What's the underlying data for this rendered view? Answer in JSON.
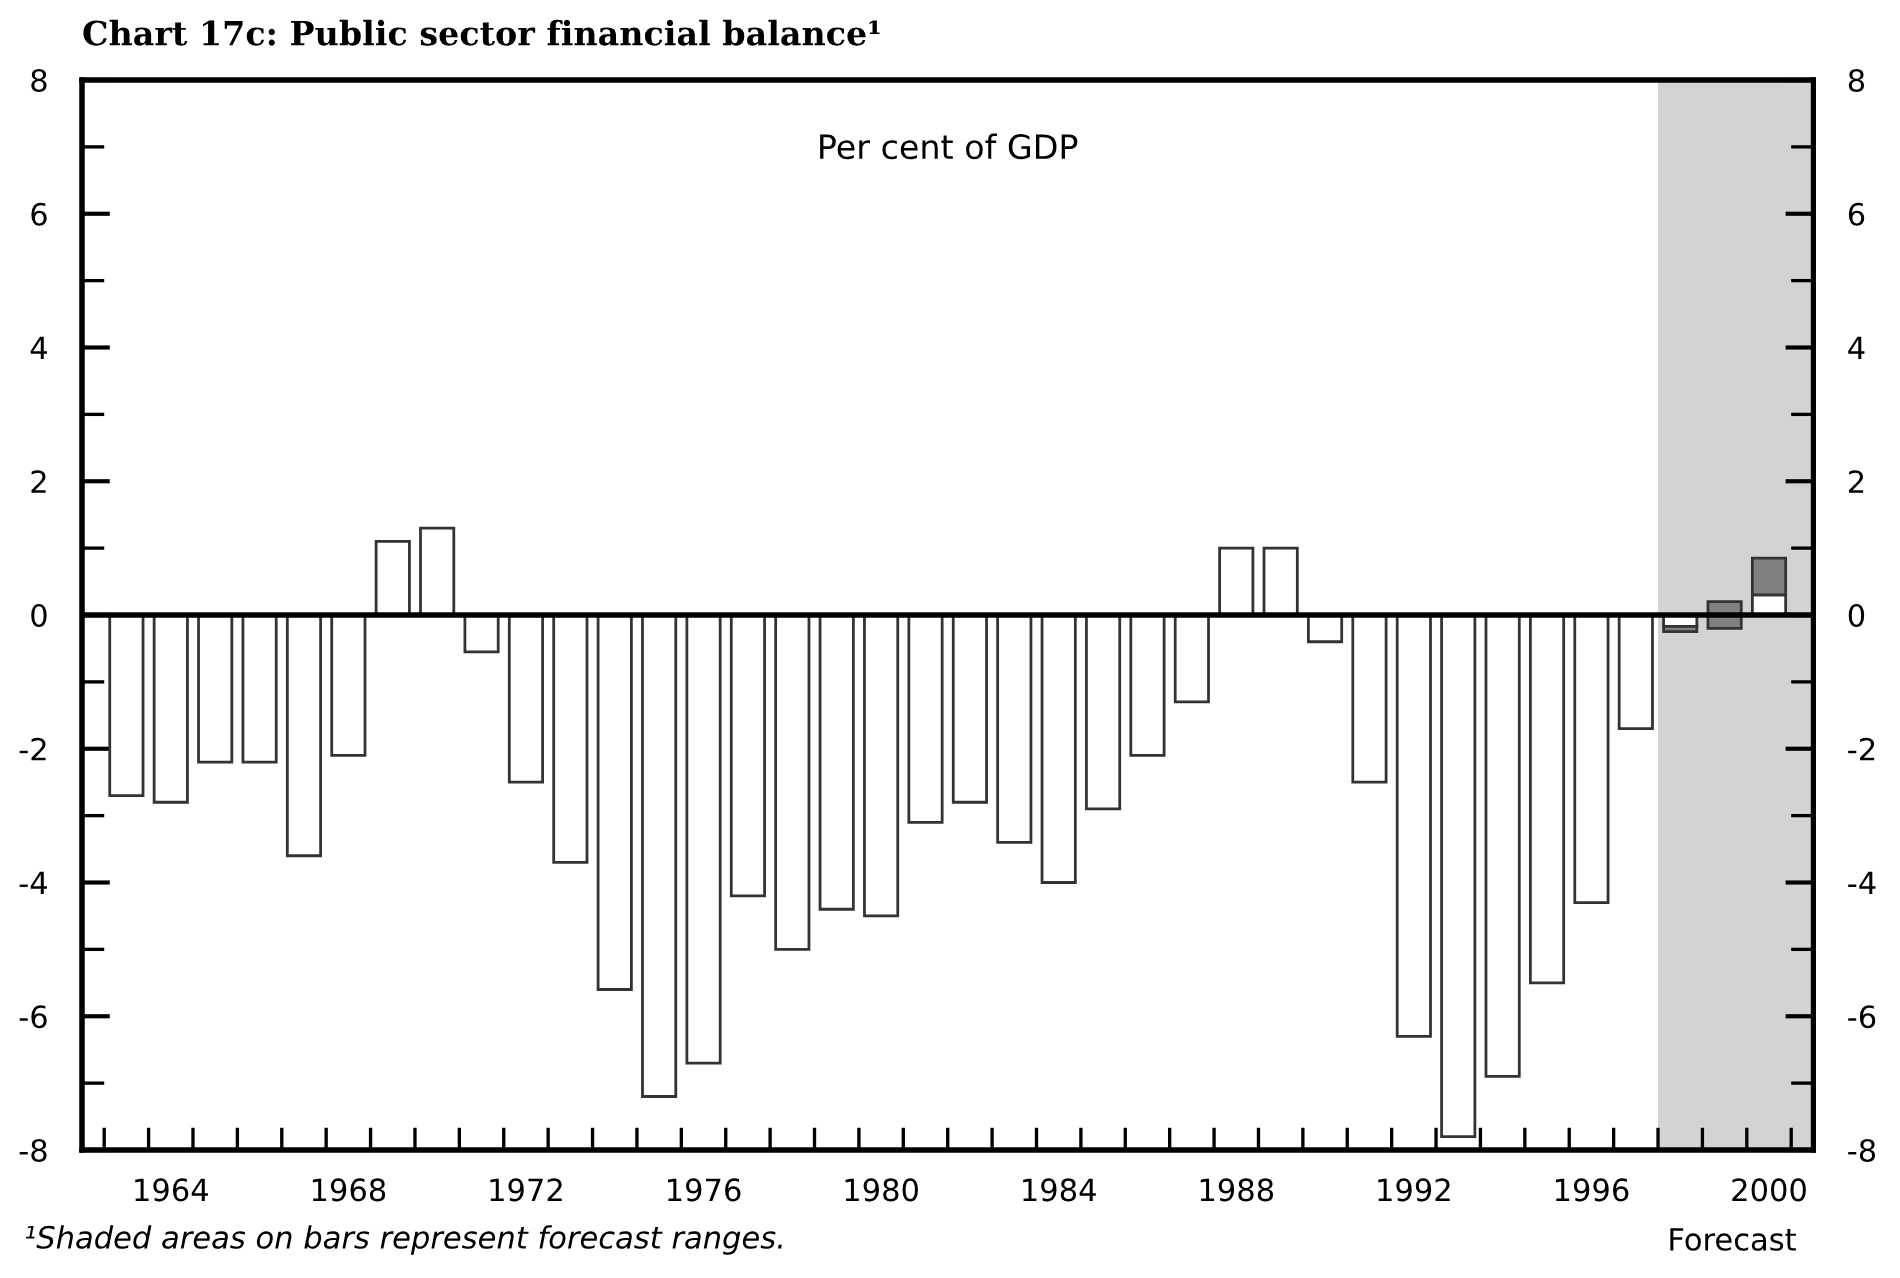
{
  "chart_data": {
    "type": "bar",
    "title": "Chart 17c: Public sector financial balance¹",
    "x": [
      1963,
      1964,
      1965,
      1966,
      1967,
      1968,
      1969,
      1970,
      1971,
      1972,
      1973,
      1974,
      1975,
      1976,
      1977,
      1978,
      1979,
      1980,
      1981,
      1982,
      1983,
      1984,
      1985,
      1986,
      1987,
      1988,
      1989,
      1990,
      1991,
      1992,
      1993,
      1994,
      1995,
      1996,
      1997,
      1998,
      1999,
      2000
    ],
    "series": [
      {
        "color": "#ffffff",
        "values": [
          -2.7,
          -2.8,
          -2.2,
          -2.2,
          -3.6,
          -2.1,
          1.1,
          1.3,
          -0.55,
          -2.5,
          -3.7,
          -5.6,
          -7.2,
          -6.7,
          -4.2,
          -5.0,
          -4.4,
          -4.5,
          -3.1,
          -2.8,
          -3.4,
          -4.0,
          -2.9,
          -2.1,
          -1.3,
          1.0,
          1.0,
          -0.4,
          -2.5,
          -6.3,
          -7.8,
          -6.9,
          -5.5,
          -4.3,
          -1.7,
          -0.17,
          null,
          0.3
        ]
      },
      {
        "color": "#808080",
        "base": [
          null,
          null,
          null,
          null,
          null,
          null,
          null,
          null,
          null,
          null,
          null,
          null,
          null,
          null,
          null,
          null,
          null,
          null,
          null,
          null,
          null,
          null,
          null,
          null,
          null,
          null,
          null,
          null,
          null,
          null,
          null,
          null,
          null,
          null,
          null,
          -0.25,
          -0.2,
          0.3
        ],
        "values": [
          null,
          null,
          null,
          null,
          null,
          null,
          null,
          null,
          null,
          null,
          null,
          null,
          null,
          null,
          null,
          null,
          null,
          null,
          null,
          null,
          null,
          null,
          null,
          null,
          null,
          null,
          null,
          null,
          null,
          null,
          null,
          null,
          null,
          null,
          null,
          0.08,
          0.4,
          0.55
        ]
      }
    ],
    "xlim": [
      1962,
      2001
    ],
    "xticks": [
      1964,
      1968,
      1972,
      1976,
      1980,
      1984,
      1988,
      1992,
      1996,
      2000,
      {
        "value": 1962.5,
        "label": null
      },
      {
        "value": 1963.5,
        "label": null
      },
      {
        "value": 1964.5,
        "label": null
      },
      {
        "value": 1965.5,
        "label": null
      },
      {
        "value": 1966.5,
        "label": null
      },
      {
        "value": 1967.5,
        "label": null
      },
      {
        "value": 1968.5,
        "label": null
      },
      {
        "value": 1969.5,
        "label": null
      },
      {
        "value": 1970.5,
        "label": null
      },
      {
        "value": 1971.5,
        "label": null
      },
      {
        "value": 1972.5,
        "label": null
      },
      {
        "value": 1973.5,
        "label": null
      },
      {
        "value": 1974.5,
        "label": null
      },
      {
        "value": 1975.5,
        "label": null
      },
      {
        "value": 1976.5,
        "label": null
      },
      {
        "value": 1977.5,
        "label": null
      },
      {
        "value": 1978.5,
        "label": null
      },
      {
        "value": 1979.5,
        "label": null
      },
      {
        "value": 1980.5,
        "label": null
      },
      {
        "value": 1981.5,
        "label": null
      },
      {
        "value": 1982.5,
        "label": null
      },
      {
        "value": 1983.5,
        "label": null
      },
      {
        "value": 1984.5,
        "label": null
      },
      {
        "value": 1985.5,
        "label": null
      },
      {
        "value": 1986.5,
        "label": null
      },
      {
        "value": 1987.5,
        "label": null
      },
      {
        "value": 1988.5,
        "label": null
      },
      {
        "value": 1989.5,
        "label": null
      },
      {
        "value": 1990.5,
        "label": null
      },
      {
        "value": 1991.5,
        "label": null
      },
      {
        "value": 1992.5,
        "label": null
      },
      {
        "value": 1993.5,
        "label": null
      },
      {
        "value": 1994.5,
        "label": null
      },
      {
        "value": 1995.5,
        "label": null
      },
      {
        "value": 1996.5,
        "label": null
      },
      {
        "value": 1997.5,
        "label": null
      },
      {
        "value": 1998.5,
        "label": null
      },
      {
        "value": 1999.5,
        "label": null
      },
      {
        "value": 2000.5,
        "label": null
      }
    ],
    "ylim": [
      -8,
      8
    ],
    "yticks": [
      -8,
      {
        "value": -7,
        "label": null
      },
      -6,
      {
        "value": -5,
        "label": null
      },
      -4,
      {
        "value": -3,
        "label": null
      },
      -2,
      {
        "value": -1,
        "label": null
      },
      0,
      {
        "value": 1,
        "label": null
      },
      2,
      {
        "value": 3,
        "label": null
      },
      4,
      {
        "value": 5,
        "label": null
      },
      6,
      {
        "value": 7,
        "label": null
      },
      8
    ],
    "y2lim": [
      -8,
      8
    ],
    "y2ticks": [
      -8,
      {
        "value": -7,
        "label": null
      },
      -6,
      {
        "value": -5,
        "label": null
      },
      -4,
      {
        "value": -3,
        "label": null
      },
      -2,
      {
        "value": -1,
        "label": null
      },
      0,
      {
        "value": 1,
        "label": null
      },
      2,
      {
        "value": 3,
        "label": null
      },
      4,
      {
        "value": 5,
        "label": null
      },
      6,
      {
        "value": 7,
        "label": null
      },
      8
    ],
    "ref_lines": [
      {
        "axis": "y",
        "value": 0,
        "color": "#000000"
      }
    ],
    "bands": [
      {
        "axis": "x",
        "from": 1997.5,
        "to": 2001,
        "color": "#d3d3d3"
      }
    ],
    "annotations": [
      "Per cent of GDP",
      "¹Shaded areas on bars represent forecast ranges.",
      "Forecast"
    ],
    "grid": false,
    "legend": false
  }
}
